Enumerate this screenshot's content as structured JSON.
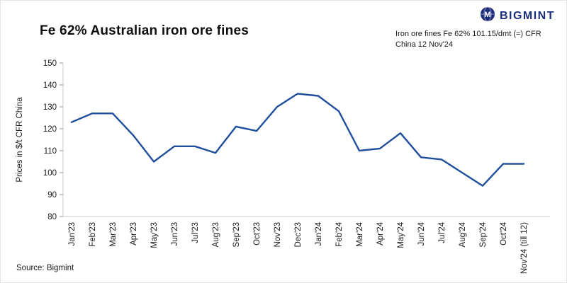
{
  "header": {
    "title": "Fe 62% Australian iron ore fines",
    "logo_text": "BIGMINT",
    "annotation_line1": "Iron ore fines Fe 62% 101.15/dmt (=) CFR",
    "annotation_line2": "China 12 Nov'24"
  },
  "chart_data": {
    "type": "line",
    "title": "Fe 62% Australian iron ore fines",
    "ylabel": "Prices in $/t CFR China",
    "ylim": [
      80,
      150
    ],
    "yticks": [
      80,
      90,
      100,
      110,
      120,
      130,
      140,
      150
    ],
    "grid": false,
    "legend_position": "none",
    "line_color": "#1f4e9c",
    "categories": [
      "Jan'23",
      "Feb'23",
      "Mar'23",
      "Apr'23",
      "May'23",
      "Jun'23",
      "Jul'23",
      "Aug'23",
      "Sep'23",
      "Oct'23",
      "Nov'23",
      "Dec'23",
      "Jan'24",
      "Feb'24",
      "Mar'24",
      "Apr'24",
      "May'24",
      "Jun'24",
      "Jul'24",
      "Aug'24",
      "Sep'24",
      "Oct'24",
      "Nov'24 (till 12)"
    ],
    "values": [
      123,
      127,
      127,
      117,
      105,
      112,
      112,
      109,
      121,
      119,
      130,
      136,
      135,
      128,
      110,
      111,
      118,
      107,
      106,
      100,
      94,
      104,
      104
    ]
  },
  "footer": {
    "source": "Source: Bigmint"
  }
}
